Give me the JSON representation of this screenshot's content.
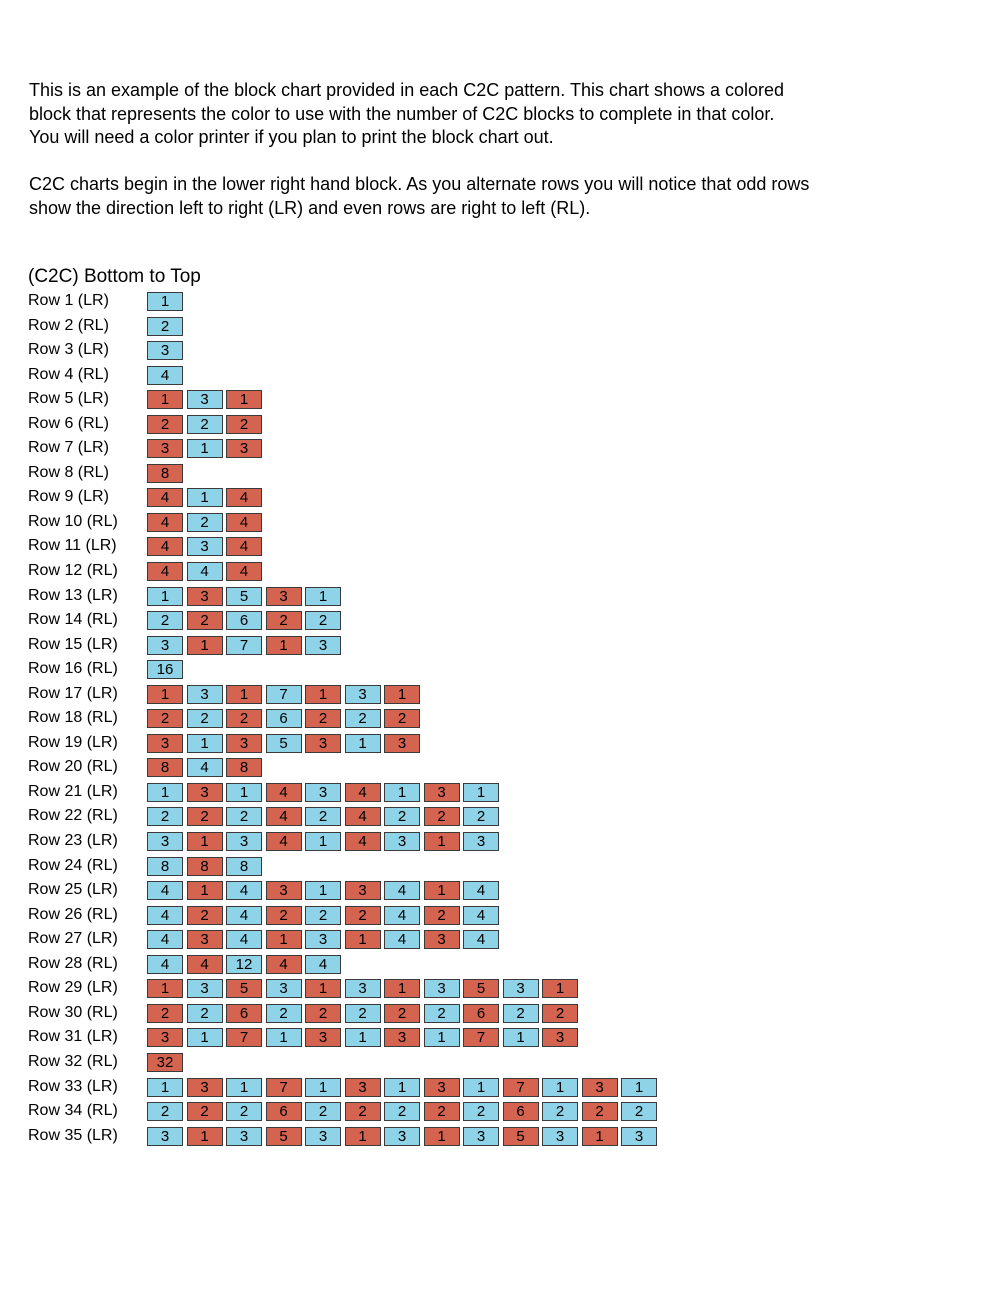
{
  "intro": {
    "paragraph1": "This is an example of the block chart provided in each C2C pattern. This chart shows a colored\nblock that represents the color to use with the number of C2C blocks to complete in that color.\nYou will need a color printer if you plan to print the block chart out.",
    "paragraph2": "C2C charts begin in the lower right hand block. As you alternate rows you will notice that odd rows\nshow the direction left to right (LR) and even rows are right to left (RL)."
  },
  "chart_title": "(C2C) Bottom to Top",
  "colors": {
    "blue": "#8fd3e8",
    "red": "#d4634f",
    "border": "#3a3a3a"
  },
  "rows": [
    {
      "label": "Row 1 (LR)",
      "blocks": [
        [
          "blue",
          "1"
        ]
      ]
    },
    {
      "label": "Row 2 (RL)",
      "blocks": [
        [
          "blue",
          "2"
        ]
      ]
    },
    {
      "label": "Row 3 (LR)",
      "blocks": [
        [
          "blue",
          "3"
        ]
      ]
    },
    {
      "label": "Row 4 (RL)",
      "blocks": [
        [
          "blue",
          "4"
        ]
      ]
    },
    {
      "label": "Row 5 (LR)",
      "blocks": [
        [
          "red",
          "1"
        ],
        [
          "blue",
          "3"
        ],
        [
          "red",
          "1"
        ]
      ]
    },
    {
      "label": "Row 6 (RL)",
      "blocks": [
        [
          "red",
          "2"
        ],
        [
          "blue",
          "2"
        ],
        [
          "red",
          "2"
        ]
      ]
    },
    {
      "label": "Row 7 (LR)",
      "blocks": [
        [
          "red",
          "3"
        ],
        [
          "blue",
          "1"
        ],
        [
          "red",
          "3"
        ]
      ]
    },
    {
      "label": "Row 8 (RL)",
      "blocks": [
        [
          "red",
          "8"
        ]
      ]
    },
    {
      "label": "Row 9 (LR)",
      "blocks": [
        [
          "red",
          "4"
        ],
        [
          "blue",
          "1"
        ],
        [
          "red",
          "4"
        ]
      ]
    },
    {
      "label": "Row 10 (RL)",
      "blocks": [
        [
          "red",
          "4"
        ],
        [
          "blue",
          "2"
        ],
        [
          "red",
          "4"
        ]
      ]
    },
    {
      "label": "Row 11 (LR)",
      "blocks": [
        [
          "red",
          "4"
        ],
        [
          "blue",
          "3"
        ],
        [
          "red",
          "4"
        ]
      ]
    },
    {
      "label": "Row 12 (RL)",
      "blocks": [
        [
          "red",
          "4"
        ],
        [
          "blue",
          "4"
        ],
        [
          "red",
          "4"
        ]
      ]
    },
    {
      "label": "Row 13 (LR)",
      "blocks": [
        [
          "blue",
          "1"
        ],
        [
          "red",
          "3"
        ],
        [
          "blue",
          "5"
        ],
        [
          "red",
          "3"
        ],
        [
          "blue",
          "1"
        ]
      ]
    },
    {
      "label": "Row 14 (RL)",
      "blocks": [
        [
          "blue",
          "2"
        ],
        [
          "red",
          "2"
        ],
        [
          "blue",
          "6"
        ],
        [
          "red",
          "2"
        ],
        [
          "blue",
          "2"
        ]
      ]
    },
    {
      "label": "Row 15 (LR)",
      "blocks": [
        [
          "blue",
          "3"
        ],
        [
          "red",
          "1"
        ],
        [
          "blue",
          "7"
        ],
        [
          "red",
          "1"
        ],
        [
          "blue",
          "3"
        ]
      ]
    },
    {
      "label": "Row 16 (RL)",
      "blocks": [
        [
          "blue",
          "16"
        ]
      ]
    },
    {
      "label": "Row 17 (LR)",
      "blocks": [
        [
          "red",
          "1"
        ],
        [
          "blue",
          "3"
        ],
        [
          "red",
          "1"
        ],
        [
          "blue",
          "7"
        ],
        [
          "red",
          "1"
        ],
        [
          "blue",
          "3"
        ],
        [
          "red",
          "1"
        ]
      ]
    },
    {
      "label": "Row 18 (RL)",
      "blocks": [
        [
          "red",
          "2"
        ],
        [
          "blue",
          "2"
        ],
        [
          "red",
          "2"
        ],
        [
          "blue",
          "6"
        ],
        [
          "red",
          "2"
        ],
        [
          "blue",
          "2"
        ],
        [
          "red",
          "2"
        ]
      ]
    },
    {
      "label": "Row 19 (LR)",
      "blocks": [
        [
          "red",
          "3"
        ],
        [
          "blue",
          "1"
        ],
        [
          "red",
          "3"
        ],
        [
          "blue",
          "5"
        ],
        [
          "red",
          "3"
        ],
        [
          "blue",
          "1"
        ],
        [
          "red",
          "3"
        ]
      ]
    },
    {
      "label": "Row 20 (RL)",
      "blocks": [
        [
          "red",
          "8"
        ],
        [
          "blue",
          "4"
        ],
        [
          "red",
          "8"
        ]
      ]
    },
    {
      "label": "Row 21 (LR)",
      "blocks": [
        [
          "blue",
          "1"
        ],
        [
          "red",
          "3"
        ],
        [
          "blue",
          "1"
        ],
        [
          "red",
          "4"
        ],
        [
          "blue",
          "3"
        ],
        [
          "red",
          "4"
        ],
        [
          "blue",
          "1"
        ],
        [
          "red",
          "3"
        ],
        [
          "blue",
          "1"
        ]
      ]
    },
    {
      "label": "Row 22 (RL)",
      "blocks": [
        [
          "blue",
          "2"
        ],
        [
          "red",
          "2"
        ],
        [
          "blue",
          "2"
        ],
        [
          "red",
          "4"
        ],
        [
          "blue",
          "2"
        ],
        [
          "red",
          "4"
        ],
        [
          "blue",
          "2"
        ],
        [
          "red",
          "2"
        ],
        [
          "blue",
          "2"
        ]
      ]
    },
    {
      "label": "Row 23 (LR)",
      "blocks": [
        [
          "blue",
          "3"
        ],
        [
          "red",
          "1"
        ],
        [
          "blue",
          "3"
        ],
        [
          "red",
          "4"
        ],
        [
          "blue",
          "1"
        ],
        [
          "red",
          "4"
        ],
        [
          "blue",
          "3"
        ],
        [
          "red",
          "1"
        ],
        [
          "blue",
          "3"
        ]
      ]
    },
    {
      "label": "Row 24 (RL)",
      "blocks": [
        [
          "blue",
          "8"
        ],
        [
          "red",
          "8"
        ],
        [
          "blue",
          "8"
        ]
      ]
    },
    {
      "label": "Row 25 (LR)",
      "blocks": [
        [
          "blue",
          "4"
        ],
        [
          "red",
          "1"
        ],
        [
          "blue",
          "4"
        ],
        [
          "red",
          "3"
        ],
        [
          "blue",
          "1"
        ],
        [
          "red",
          "3"
        ],
        [
          "blue",
          "4"
        ],
        [
          "red",
          "1"
        ],
        [
          "blue",
          "4"
        ]
      ]
    },
    {
      "label": "Row 26 (RL)",
      "blocks": [
        [
          "blue",
          "4"
        ],
        [
          "red",
          "2"
        ],
        [
          "blue",
          "4"
        ],
        [
          "red",
          "2"
        ],
        [
          "blue",
          "2"
        ],
        [
          "red",
          "2"
        ],
        [
          "blue",
          "4"
        ],
        [
          "red",
          "2"
        ],
        [
          "blue",
          "4"
        ]
      ]
    },
    {
      "label": "Row 27 (LR)",
      "blocks": [
        [
          "blue",
          "4"
        ],
        [
          "red",
          "3"
        ],
        [
          "blue",
          "4"
        ],
        [
          "red",
          "1"
        ],
        [
          "blue",
          "3"
        ],
        [
          "red",
          "1"
        ],
        [
          "blue",
          "4"
        ],
        [
          "red",
          "3"
        ],
        [
          "blue",
          "4"
        ]
      ]
    },
    {
      "label": "Row 28 (RL)",
      "blocks": [
        [
          "blue",
          "4"
        ],
        [
          "red",
          "4"
        ],
        [
          "blue",
          "12"
        ],
        [
          "red",
          "4"
        ],
        [
          "blue",
          "4"
        ]
      ]
    },
    {
      "label": "Row 29 (LR)",
      "blocks": [
        [
          "red",
          "1"
        ],
        [
          "blue",
          "3"
        ],
        [
          "red",
          "5"
        ],
        [
          "blue",
          "3"
        ],
        [
          "red",
          "1"
        ],
        [
          "blue",
          "3"
        ],
        [
          "red",
          "1"
        ],
        [
          "blue",
          "3"
        ],
        [
          "red",
          "5"
        ],
        [
          "blue",
          "3"
        ],
        [
          "red",
          "1"
        ]
      ]
    },
    {
      "label": "Row 30 (RL)",
      "blocks": [
        [
          "red",
          "2"
        ],
        [
          "blue",
          "2"
        ],
        [
          "red",
          "6"
        ],
        [
          "blue",
          "2"
        ],
        [
          "red",
          "2"
        ],
        [
          "blue",
          "2"
        ],
        [
          "red",
          "2"
        ],
        [
          "blue",
          "2"
        ],
        [
          "red",
          "6"
        ],
        [
          "blue",
          "2"
        ],
        [
          "red",
          "2"
        ]
      ]
    },
    {
      "label": "Row 31 (LR)",
      "blocks": [
        [
          "red",
          "3"
        ],
        [
          "blue",
          "1"
        ],
        [
          "red",
          "7"
        ],
        [
          "blue",
          "1"
        ],
        [
          "red",
          "3"
        ],
        [
          "blue",
          "1"
        ],
        [
          "red",
          "3"
        ],
        [
          "blue",
          "1"
        ],
        [
          "red",
          "7"
        ],
        [
          "blue",
          "1"
        ],
        [
          "red",
          "3"
        ]
      ]
    },
    {
      "label": "Row 32 (RL)",
      "blocks": [
        [
          "red",
          "32"
        ]
      ]
    },
    {
      "label": "Row 33 (LR)",
      "blocks": [
        [
          "blue",
          "1"
        ],
        [
          "red",
          "3"
        ],
        [
          "blue",
          "1"
        ],
        [
          "red",
          "7"
        ],
        [
          "blue",
          "1"
        ],
        [
          "red",
          "3"
        ],
        [
          "blue",
          "1"
        ],
        [
          "red",
          "3"
        ],
        [
          "blue",
          "1"
        ],
        [
          "red",
          "7"
        ],
        [
          "blue",
          "1"
        ],
        [
          "red",
          "3"
        ],
        [
          "blue",
          "1"
        ]
      ]
    },
    {
      "label": "Row 34 (RL)",
      "blocks": [
        [
          "blue",
          "2"
        ],
        [
          "red",
          "2"
        ],
        [
          "blue",
          "2"
        ],
        [
          "red",
          "6"
        ],
        [
          "blue",
          "2"
        ],
        [
          "red",
          "2"
        ],
        [
          "blue",
          "2"
        ],
        [
          "red",
          "2"
        ],
        [
          "blue",
          "2"
        ],
        [
          "red",
          "6"
        ],
        [
          "blue",
          "2"
        ],
        [
          "red",
          "2"
        ],
        [
          "blue",
          "2"
        ]
      ]
    },
    {
      "label": "Row 35 (LR)",
      "blocks": [
        [
          "blue",
          "3"
        ],
        [
          "red",
          "1"
        ],
        [
          "blue",
          "3"
        ],
        [
          "red",
          "5"
        ],
        [
          "blue",
          "3"
        ],
        [
          "red",
          "1"
        ],
        [
          "blue",
          "3"
        ],
        [
          "red",
          "1"
        ],
        [
          "blue",
          "3"
        ],
        [
          "red",
          "5"
        ],
        [
          "blue",
          "3"
        ],
        [
          "red",
          "1"
        ],
        [
          "blue",
          "3"
        ]
      ]
    }
  ]
}
